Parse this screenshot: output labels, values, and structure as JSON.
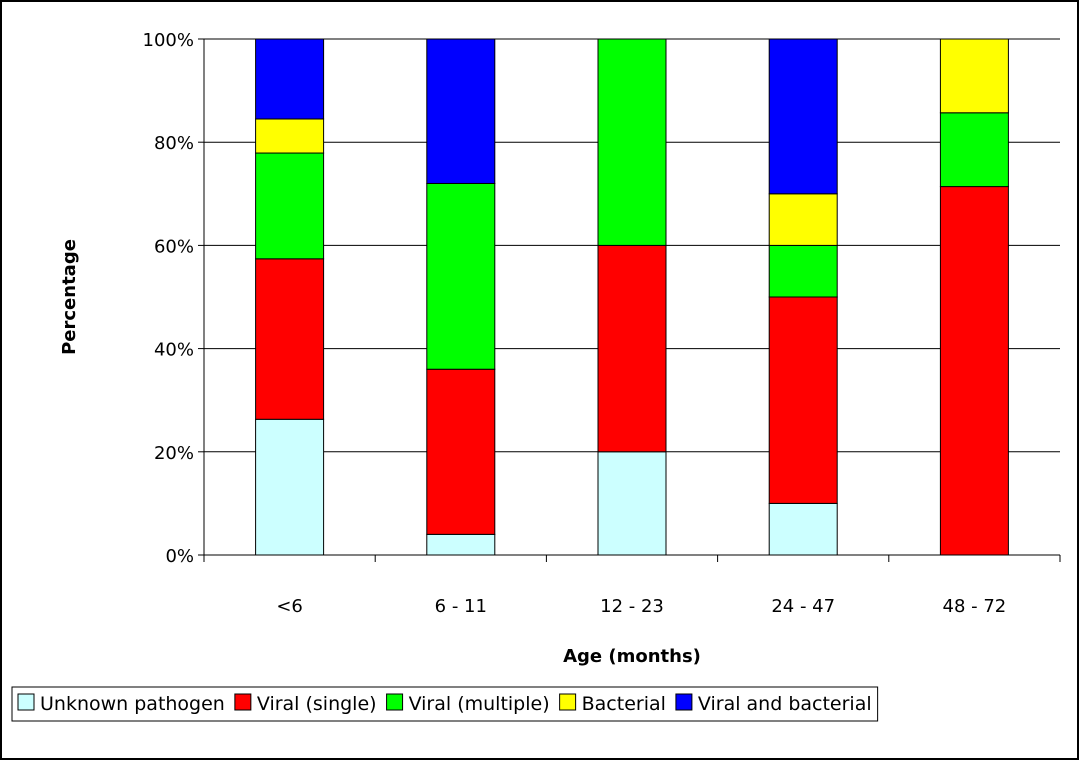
{
  "chart_data": {
    "type": "bar",
    "stacked": true,
    "percent_stacked": true,
    "categories": [
      "<6",
      "6 - 11",
      "12 - 23",
      "24 - 47",
      "48 - 72"
    ],
    "series": [
      {
        "name": "Unknown pathogen",
        "color": "#CCFFFF",
        "values": [
          26.3,
          4,
          20,
          10,
          0
        ]
      },
      {
        "name": "Viral (single)",
        "color": "#FF0000",
        "values": [
          31.1,
          32,
          40,
          40,
          71.4
        ]
      },
      {
        "name": "Viral (multiple)",
        "color": "#00FF00",
        "values": [
          20.5,
          36,
          40,
          10,
          14.3
        ]
      },
      {
        "name": "Bacterial",
        "color": "#FFFF00",
        "values": [
          6.6,
          0,
          0,
          10,
          14.3
        ]
      },
      {
        "name": "Viral and bacterial",
        "color": "#0000FF",
        "values": [
          15.5,
          28,
          0,
          30,
          0
        ]
      }
    ],
    "xlabel": "Age (months)",
    "ylabel": "Percentage",
    "ylim": [
      0,
      100
    ],
    "yticks": [
      "0%",
      "20%",
      "40%",
      "60%",
      "80%",
      "100%"
    ],
    "grid": true,
    "legend_position": "bottom"
  }
}
